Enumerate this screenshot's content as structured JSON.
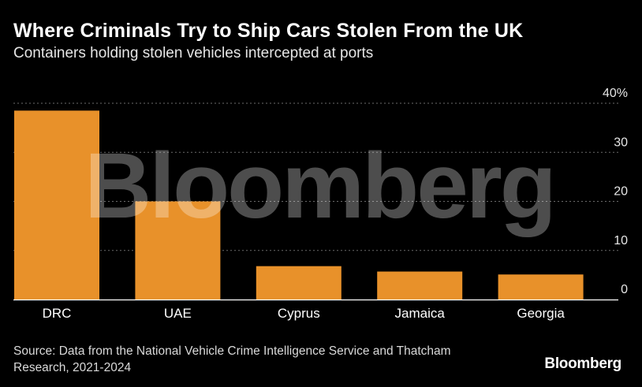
{
  "header": {
    "title": "Where Criminals Try to Ship Cars Stolen From the UK",
    "subtitle": "Containers holding stolen vehicles intercepted at ports"
  },
  "footer": {
    "source": "Source: Data from the National Vehicle Crime Intelligence Service and Thatcham Research, 2021-2024",
    "brand": "Bloomberg"
  },
  "watermark": "Bloomberg",
  "colors": {
    "background": "#000000",
    "bar": "#e8912a",
    "grid": "#6b6b6b",
    "text": "#ffffff",
    "watermark": "#ffffff"
  },
  "chart_data": {
    "type": "bar",
    "categories": [
      "DRC",
      "UAE",
      "Cyprus",
      "Jamaica",
      "Georgia"
    ],
    "values": [
      38.5,
      20,
      6.8,
      5.7,
      5.1
    ],
    "title": "Where Criminals Try to Ship Cars Stolen From the UK",
    "subtitle": "Containers holding stolen vehicles intercepted at ports",
    "xlabel": "",
    "ylabel": "",
    "ylim": [
      0,
      40
    ],
    "yticks": [
      0,
      10,
      20,
      30,
      40
    ],
    "ytick_labels": [
      "0",
      "10",
      "20",
      "30",
      "40%"
    ],
    "y_axis_side": "right",
    "grid": true
  }
}
